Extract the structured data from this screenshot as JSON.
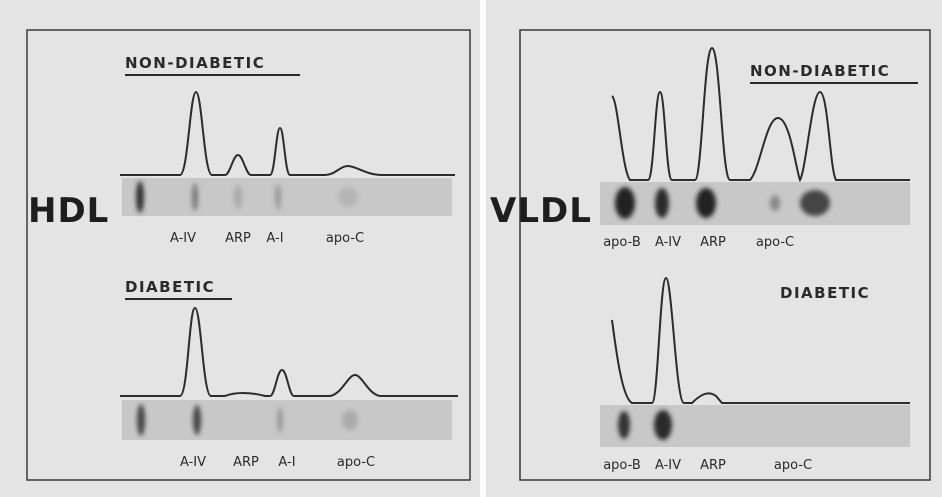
{
  "panels": [
    {
      "title": "HDL",
      "sections": [
        {
          "heading": "NON-DIABETIC",
          "bands": [
            "A-IV",
            "ARP",
            "A-I",
            "apo-C"
          ]
        },
        {
          "heading": "DIABETIC",
          "bands": [
            "A-IV",
            "ARP",
            "A-I",
            "apo-C"
          ]
        }
      ]
    },
    {
      "title": "VLDL",
      "sections": [
        {
          "heading": "NON-DIABETIC",
          "bands": [
            "apo-B",
            "A-IV",
            "ARP",
            "apo-C"
          ]
        },
        {
          "heading": "DIABETIC",
          "bands": [
            "apo-B",
            "A-IV",
            "ARP",
            "apo-C"
          ]
        }
      ]
    }
  ]
}
